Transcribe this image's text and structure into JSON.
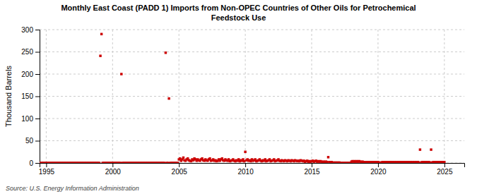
{
  "chart_data": {
    "type": "scatter",
    "title": "Monthly East Coast (PADD 1) Imports from Non-OPEC Countries of Other Oils for Petrochemical\nFeedstock Use",
    "y_label": "Thousand Barrels",
    "annotations": [
      "Source: U.S. Energy Information Administration"
    ],
    "color": "#cc0000",
    "marker": "square",
    "grid": true,
    "xlim": [
      1994.5,
      2026.5
    ],
    "xticks": [
      1995,
      2000,
      2005,
      2010,
      2015,
      2020,
      2025
    ],
    "ylim": [
      0,
      300
    ],
    "yticks": [
      0,
      50,
      100,
      150,
      200,
      250,
      300
    ],
    "x": [
      1994.583,
      1994.667,
      1994.75,
      1994.833,
      1994.917,
      1995.0,
      1995.083,
      1995.167,
      1995.25,
      1995.333,
      1995.417,
      1995.5,
      1995.583,
      1995.667,
      1995.75,
      1995.833,
      1995.917,
      1996.0,
      1996.083,
      1996.167,
      1996.25,
      1996.333,
      1996.417,
      1996.5,
      1996.583,
      1996.667,
      1996.75,
      1996.833,
      1996.917,
      1997.0,
      1997.083,
      1997.167,
      1997.25,
      1997.333,
      1997.417,
      1997.5,
      1997.583,
      1997.667,
      1997.75,
      1997.833,
      1997.917,
      1998.0,
      1998.083,
      1998.167,
      1998.25,
      1998.333,
      1998.417,
      1998.5,
      1998.583,
      1998.667,
      1998.75,
      1998.833,
      1998.917,
      1999.0,
      1999.083,
      1999.167,
      1999.25,
      1999.333,
      1999.417,
      1999.5,
      1999.583,
      1999.667,
      1999.75,
      1999.833,
      1999.917,
      2000.0,
      2000.083,
      2000.167,
      2000.25,
      2000.333,
      2000.417,
      2000.5,
      2000.583,
      2000.667,
      2000.75,
      2000.833,
      2000.917,
      2001.0,
      2001.083,
      2001.167,
      2001.25,
      2001.333,
      2001.417,
      2001.5,
      2001.583,
      2001.667,
      2001.75,
      2001.833,
      2001.917,
      2002.0,
      2002.083,
      2002.167,
      2002.25,
      2002.333,
      2002.417,
      2002.5,
      2002.583,
      2002.667,
      2002.75,
      2002.833,
      2002.917,
      2003.0,
      2003.083,
      2003.167,
      2003.25,
      2003.333,
      2003.417,
      2003.5,
      2003.583,
      2003.667,
      2003.75,
      2003.833,
      2003.917,
      2004.0,
      2004.083,
      2004.167,
      2004.25,
      2004.333,
      2004.417,
      2004.5,
      2004.583,
      2004.667,
      2004.75,
      2004.833,
      2004.917,
      2005.0,
      2005.083,
      2005.167,
      2005.25,
      2005.333,
      2005.417,
      2005.5,
      2005.583,
      2005.667,
      2005.75,
      2005.833,
      2005.917,
      2006.0,
      2006.083,
      2006.167,
      2006.25,
      2006.333,
      2006.417,
      2006.5,
      2006.583,
      2006.667,
      2006.75,
      2006.833,
      2006.917,
      2007.0,
      2007.083,
      2007.167,
      2007.25,
      2007.333,
      2007.417,
      2007.5,
      2007.583,
      2007.667,
      2007.75,
      2007.833,
      2007.917,
      2008.0,
      2008.083,
      2008.167,
      2008.25,
      2008.333,
      2008.417,
      2008.5,
      2008.583,
      2008.667,
      2008.75,
      2008.833,
      2008.917,
      2009.0,
      2009.083,
      2009.167,
      2009.25,
      2009.333,
      2009.417,
      2009.5,
      2009.583,
      2009.667,
      2009.75,
      2009.833,
      2009.917,
      2010.0,
      2010.083,
      2010.167,
      2010.25,
      2010.333,
      2010.417,
      2010.5,
      2010.583,
      2010.667,
      2010.75,
      2010.833,
      2010.917,
      2011.0,
      2011.083,
      2011.167,
      2011.25,
      2011.333,
      2011.417,
      2011.5,
      2011.583,
      2011.667,
      2011.75,
      2011.833,
      2011.917,
      2012.0,
      2012.083,
      2012.167,
      2012.25,
      2012.333,
      2012.417,
      2012.5,
      2012.583,
      2012.667,
      2012.75,
      2012.833,
      2012.917,
      2013.0,
      2013.083,
      2013.167,
      2013.25,
      2013.333,
      2013.417,
      2013.5,
      2013.583,
      2013.667,
      2013.75,
      2013.833,
      2013.917,
      2014.0,
      2014.083,
      2014.167,
      2014.25,
      2014.333,
      2014.417,
      2014.5,
      2014.583,
      2014.667,
      2014.75,
      2014.833,
      2014.917,
      2015.0,
      2015.083,
      2015.167,
      2015.25,
      2015.333,
      2015.417,
      2015.5,
      2015.583,
      2015.667,
      2015.75,
      2015.833,
      2015.917,
      2016.0,
      2016.083,
      2016.167,
      2016.25,
      2016.333,
      2016.417,
      2016.5,
      2016.583,
      2016.667,
      2016.75,
      2016.833,
      2016.917,
      2017.0,
      2017.083,
      2017.167,
      2017.25,
      2017.333,
      2017.417,
      2017.5,
      2017.583,
      2017.667,
      2017.75,
      2017.833,
      2017.917,
      2018.0,
      2018.083,
      2018.167,
      2018.25,
      2018.333,
      2018.417,
      2018.5,
      2018.583,
      2018.667,
      2018.75,
      2018.833,
      2018.917,
      2019.0,
      2019.083,
      2019.167,
      2019.25,
      2019.333,
      2019.417,
      2019.5,
      2019.583,
      2019.667,
      2019.75,
      2019.833,
      2019.917,
      2020.0,
      2020.083,
      2020.167,
      2020.25,
      2020.333,
      2020.417,
      2020.5,
      2020.583,
      2020.667,
      2020.75,
      2020.833,
      2020.917,
      2021.0,
      2021.083,
      2021.167,
      2021.25,
      2021.333,
      2021.417,
      2021.5,
      2021.583,
      2021.667,
      2021.75,
      2021.833,
      2021.917,
      2022.0,
      2022.083,
      2022.167,
      2022.25,
      2022.333,
      2022.417,
      2022.5,
      2022.583,
      2022.667,
      2022.75,
      2022.833,
      2022.917,
      2023.0,
      2023.083,
      2023.167,
      2023.25,
      2023.333,
      2023.417,
      2023.5,
      2023.583,
      2023.667,
      2023.75,
      2023.833,
      2023.917,
      2024.0,
      2024.083,
      2024.167,
      2024.25,
      2024.333,
      2024.417,
      2024.5,
      2024.583,
      2024.667,
      2024.75,
      2024.833,
      2024.917,
      2025.0
    ],
    "values": [
      0,
      0,
      0,
      0,
      0,
      0,
      0,
      0,
      0,
      0,
      0,
      0,
      0,
      0,
      0,
      0,
      0,
      0,
      0,
      0,
      0,
      0,
      0,
      0,
      0,
      0,
      0,
      0,
      0,
      0,
      0,
      0,
      0,
      0,
      0,
      0,
      0,
      0,
      0,
      0,
      0,
      0,
      0,
      0,
      0,
      0,
      0,
      0,
      0,
      0,
      0,
      0,
      0,
      0,
      241,
      290,
      0,
      0,
      0,
      0,
      0,
      0,
      0,
      0,
      0,
      0,
      0,
      0,
      0,
      0,
      0,
      0,
      0,
      200,
      0,
      0,
      0,
      0,
      0,
      0,
      0,
      0,
      0,
      0,
      0,
      0,
      0,
      0,
      0,
      0,
      0,
      0,
      0,
      0,
      0,
      0,
      0,
      0,
      0,
      0,
      0,
      0,
      0,
      0,
      0,
      0,
      0,
      0,
      0,
      0,
      0,
      0,
      0,
      248,
      0,
      0,
      145,
      0,
      0,
      0,
      0,
      0,
      0,
      0,
      0,
      8,
      10,
      5,
      8,
      12,
      6,
      5,
      8,
      10,
      6,
      5,
      4,
      8,
      6,
      10,
      8,
      5,
      8,
      6,
      5,
      8,
      10,
      6,
      5,
      8,
      6,
      5,
      8,
      10,
      5,
      6,
      8,
      5,
      6,
      4,
      5,
      8,
      5,
      8,
      10,
      6,
      5,
      8,
      6,
      5,
      8,
      4,
      5,
      6,
      8,
      5,
      4,
      6,
      5,
      8,
      4,
      6,
      5,
      8,
      4,
      25,
      6,
      8,
      5,
      6,
      4,
      8,
      5,
      6,
      8,
      4,
      5,
      6,
      8,
      5,
      4,
      6,
      5,
      8,
      4,
      5,
      6,
      8,
      4,
      5,
      6,
      8,
      4,
      5,
      6,
      8,
      5,
      4,
      6,
      5,
      4,
      6,
      5,
      4,
      6,
      5,
      4,
      6,
      5,
      4,
      6,
      5,
      4,
      5,
      4,
      6,
      5,
      4,
      5,
      3,
      4,
      5,
      3,
      4,
      3,
      4,
      5,
      3,
      4,
      5,
      3,
      4,
      3,
      4,
      3,
      2,
      3,
      2,
      3,
      2,
      13,
      2,
      1,
      2,
      1,
      0,
      1,
      0,
      1,
      0,
      1,
      0,
      0,
      0,
      0,
      0,
      0,
      0,
      0,
      0,
      0,
      3,
      4,
      3,
      4,
      3,
      4,
      3,
      4,
      3,
      2,
      3,
      2,
      2,
      1,
      2,
      1,
      2,
      1,
      2,
      1,
      2,
      1,
      2,
      1,
      2,
      1,
      0,
      1,
      2,
      1,
      2,
      1,
      2,
      1,
      2,
      1,
      2,
      1,
      2,
      1,
      2,
      1,
      2,
      1,
      2,
      1,
      2,
      1,
      2,
      1,
      2,
      1,
      2,
      1,
      2,
      1,
      2,
      1,
      2,
      1,
      2,
      1,
      30,
      1,
      2,
      1,
      2,
      1,
      2,
      1,
      2,
      1,
      30,
      1,
      2,
      1,
      2,
      1,
      2,
      1,
      2,
      1,
      2,
      1,
      2
    ]
  }
}
